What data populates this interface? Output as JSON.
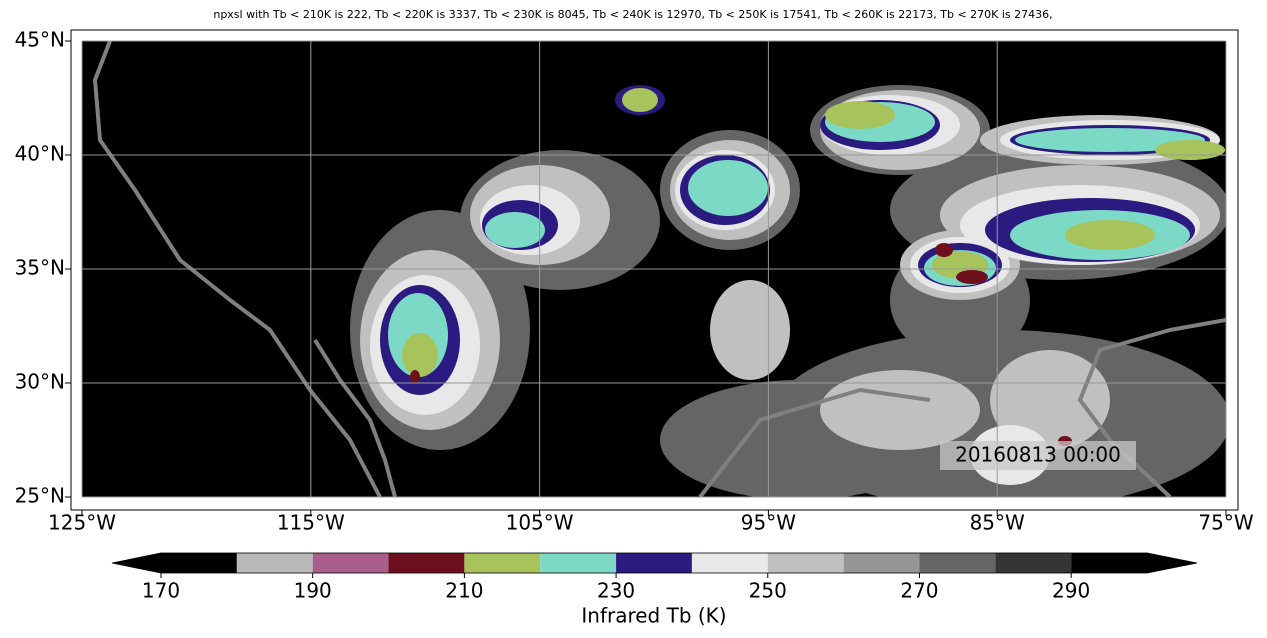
{
  "title": "npxsl with Tb < 210K is 222,  Tb < 220K is 3337,  Tb < 230K is 8045,  Tb < 240K is 12970,  Tb < 250K is 17541,  Tb < 260K is 22173,  Tb < 270K is 27436,",
  "map": {
    "xlim": [
      -125,
      -75
    ],
    "ylim": [
      25,
      45
    ],
    "xticks": [
      {
        "value": -125,
        "label": "125°W"
      },
      {
        "value": -115,
        "label": "115°W"
      },
      {
        "value": -105,
        "label": "105°W"
      },
      {
        "value": -95,
        "label": "95°W"
      },
      {
        "value": -85,
        "label": "85°W"
      },
      {
        "value": -75,
        "label": "75°W"
      }
    ],
    "yticks": [
      {
        "value": 45,
        "label": "45°N"
      },
      {
        "value": 40,
        "label": "40°N"
      },
      {
        "value": 35,
        "label": "35°N"
      },
      {
        "value": 30,
        "label": "30°N"
      },
      {
        "value": 25,
        "label": "25°N"
      }
    ],
    "grid": true,
    "timestamp": "20160813 00:00"
  },
  "colorbar": {
    "label": "Infrared Tb (K)",
    "levels": [
      170,
      180,
      190,
      200,
      210,
      220,
      230,
      240,
      250,
      260,
      270,
      280,
      290,
      300
    ],
    "colors": [
      "#000000",
      "#b9b9b9",
      "#a95e8c",
      "#6e0f1e",
      "#a6c35c",
      "#7bd9c6",
      "#2b1a80",
      "#e8e8e8",
      "#c0c0c0",
      "#969696",
      "#656565",
      "#353535",
      "#000000"
    ],
    "ticks": [
      170,
      190,
      210,
      230,
      250,
      270,
      290
    ],
    "extend": "both"
  }
}
